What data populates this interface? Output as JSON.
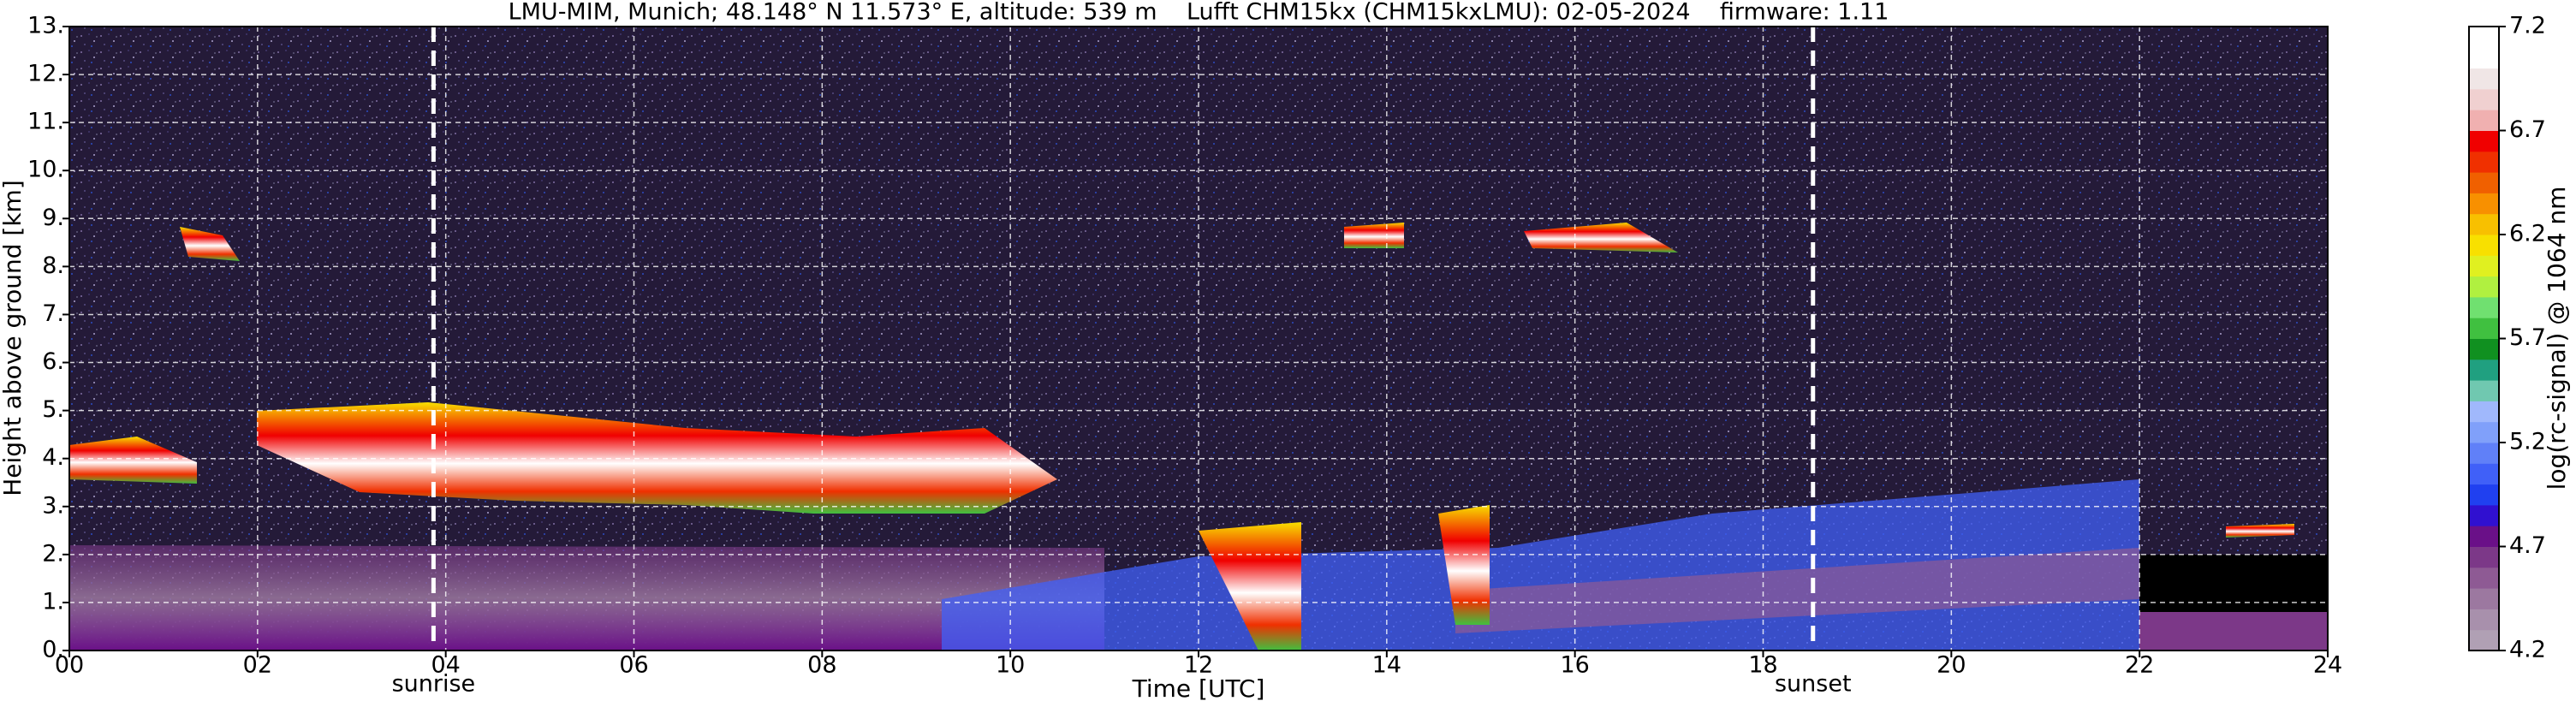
{
  "chart_data": {
    "type": "heatmap",
    "title": "LMU-MIM, Munich; 48.148° N 11.573° E, altitude: 539 m    Lufft CHM15kx (CHM15kxLMU): 02-05-2024    firmware: 1.11",
    "xlabel": "Time [UTC]",
    "ylabel": "Height above ground [km]",
    "xlim": [
      0,
      24
    ],
    "xticks": [
      {
        "value": 0,
        "label": "00"
      },
      {
        "value": 2,
        "label": "02"
      },
      {
        "value": 4,
        "label": "04"
      },
      {
        "value": 6,
        "label": "06"
      },
      {
        "value": 8,
        "label": "08"
      },
      {
        "value": 10,
        "label": "10"
      },
      {
        "value": 12,
        "label": "12"
      },
      {
        "value": 14,
        "label": "14"
      },
      {
        "value": 16,
        "label": "16"
      },
      {
        "value": 18,
        "label": "18"
      },
      {
        "value": 20,
        "label": "20"
      },
      {
        "value": 22,
        "label": "22"
      },
      {
        "value": 24,
        "label": "24"
      }
    ],
    "ylim": [
      0,
      13
    ],
    "yticks": [
      {
        "value": 0,
        "label": "0."
      },
      {
        "value": 1,
        "label": "1."
      },
      {
        "value": 2,
        "label": "2."
      },
      {
        "value": 3,
        "label": "3."
      },
      {
        "value": 4,
        "label": "4."
      },
      {
        "value": 5,
        "label": "5."
      },
      {
        "value": 6,
        "label": "6."
      },
      {
        "value": 7,
        "label": "7."
      },
      {
        "value": 8,
        "label": "8."
      },
      {
        "value": 9,
        "label": "9."
      },
      {
        "value": 10,
        "label": "10."
      },
      {
        "value": 11,
        "label": "11."
      },
      {
        "value": 12,
        "label": "12."
      },
      {
        "value": 13,
        "label": "13."
      }
    ],
    "grid": true,
    "annotations": [
      {
        "text": "sunrise",
        "x": 3.87
      },
      {
        "text": "sunset",
        "x": 18.53
      }
    ],
    "colorbar": {
      "label": "log(rc-signal) @ 1064 nm",
      "lim": [
        4.2,
        7.2
      ],
      "ticks": [
        4.2,
        4.7,
        5.2,
        5.7,
        6.2,
        6.7,
        7.2
      ],
      "colors": [
        "#b0a0b4",
        "#a890ac",
        "#9c78a0",
        "#8e5a94",
        "#7c3888",
        "#6a1088",
        "#3010d0",
        "#2040f0",
        "#4060f8",
        "#6080f8",
        "#80a0fa",
        "#a0b8fc",
        "#70c8b0",
        "#20a080",
        "#109020",
        "#40c040",
        "#70e070",
        "#b0f040",
        "#e0f020",
        "#f8e000",
        "#f8c000",
        "#f89000",
        "#f06000",
        "#f03000",
        "#f00000",
        "#f0b0b0",
        "#f0d0d0",
        "#f0e6e6",
        "#ffffff",
        "#ffffff"
      ]
    }
  }
}
